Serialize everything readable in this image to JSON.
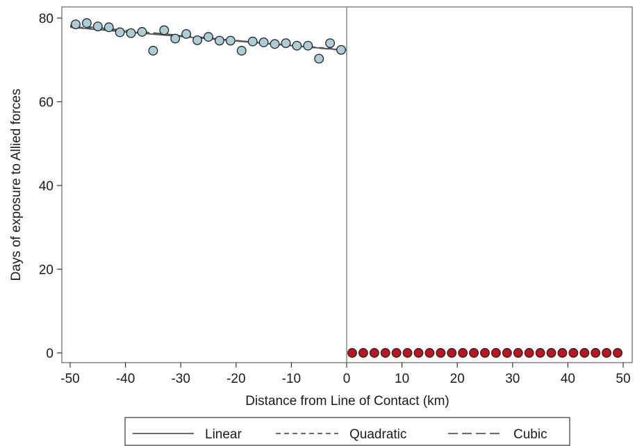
{
  "chart_data": {
    "type": "scatter",
    "title": "",
    "xlabel": "Distance from Line of Contact (km)",
    "ylabel": "Days of exposure to Allied forces",
    "xlim": [
      -50,
      50
    ],
    "ylim": [
      0,
      80
    ],
    "xticks": [
      -50,
      -40,
      -30,
      -20,
      -10,
      0,
      10,
      20,
      30,
      40,
      50
    ],
    "yticks": [
      0,
      20,
      40,
      60,
      80
    ],
    "cutoff_line_x": 0,
    "grid": false,
    "legend_position": "bottom",
    "series": [
      {
        "color": "#a9cdd9",
        "marker": "circle",
        "points": [
          {
            "x": -49,
            "y": 78.5
          },
          {
            "x": -47,
            "y": 78.8
          },
          {
            "x": -45,
            "y": 78.0
          },
          {
            "x": -43,
            "y": 77.8
          },
          {
            "x": -41,
            "y": 76.6
          },
          {
            "x": -39,
            "y": 76.4
          },
          {
            "x": -37,
            "y": 76.7
          },
          {
            "x": -35,
            "y": 72.2
          },
          {
            "x": -33,
            "y": 77.1
          },
          {
            "x": -31,
            "y": 75.1
          },
          {
            "x": -29,
            "y": 76.2
          },
          {
            "x": -27,
            "y": 74.7
          },
          {
            "x": -25,
            "y": 75.5
          },
          {
            "x": -23,
            "y": 74.6
          },
          {
            "x": -21,
            "y": 74.6
          },
          {
            "x": -19,
            "y": 72.2
          },
          {
            "x": -17,
            "y": 74.4
          },
          {
            "x": -15,
            "y": 74.2
          },
          {
            "x": -13,
            "y": 73.8
          },
          {
            "x": -11,
            "y": 74.0
          },
          {
            "x": -9,
            "y": 73.4
          },
          {
            "x": -7,
            "y": 73.4
          },
          {
            "x": -5,
            "y": 70.3
          },
          {
            "x": -3,
            "y": 74.0
          },
          {
            "x": -1,
            "y": 72.4
          }
        ]
      },
      {
        "color": "#c0141c",
        "marker": "circle",
        "points": [
          {
            "x": 1,
            "y": 0
          },
          {
            "x": 3,
            "y": 0
          },
          {
            "x": 5,
            "y": 0
          },
          {
            "x": 7,
            "y": 0
          },
          {
            "x": 9,
            "y": 0
          },
          {
            "x": 11,
            "y": 0
          },
          {
            "x": 13,
            "y": 0
          },
          {
            "x": 15,
            "y": 0
          },
          {
            "x": 17,
            "y": 0
          },
          {
            "x": 19,
            "y": 0
          },
          {
            "x": 21,
            "y": 0
          },
          {
            "x": 23,
            "y": 0
          },
          {
            "x": 25,
            "y": 0
          },
          {
            "x": 27,
            "y": 0
          },
          {
            "x": 29,
            "y": 0
          },
          {
            "x": 31,
            "y": 0
          },
          {
            "x": 33,
            "y": 0
          },
          {
            "x": 35,
            "y": 0
          },
          {
            "x": 37,
            "y": 0
          },
          {
            "x": 39,
            "y": 0
          },
          {
            "x": 41,
            "y": 0
          },
          {
            "x": 43,
            "y": 0
          },
          {
            "x": 45,
            "y": 0
          },
          {
            "x": 47,
            "y": 0
          },
          {
            "x": 49,
            "y": 0
          }
        ]
      }
    ],
    "fits": [
      {
        "name": "Linear",
        "dash": "solid",
        "color": "#555555",
        "x": [
          -50,
          0
        ],
        "y": [
          77.8,
          72.3
        ]
      },
      {
        "name": "Quadratic",
        "dash": "short-dash",
        "color": "#555555",
        "x": [
          -50,
          0
        ],
        "y": [
          78.0,
          72.4
        ]
      },
      {
        "name": "Cubic",
        "dash": "long-dash",
        "color": "#555555",
        "x": [
          -50,
          0
        ],
        "y": [
          78.3,
          72.2
        ]
      }
    ],
    "legend": [
      {
        "label": "Linear",
        "dash": "solid"
      },
      {
        "label": "Quadratic",
        "dash": "short-dash"
      },
      {
        "label": "Cubic",
        "dash": "long-dash"
      }
    ]
  }
}
